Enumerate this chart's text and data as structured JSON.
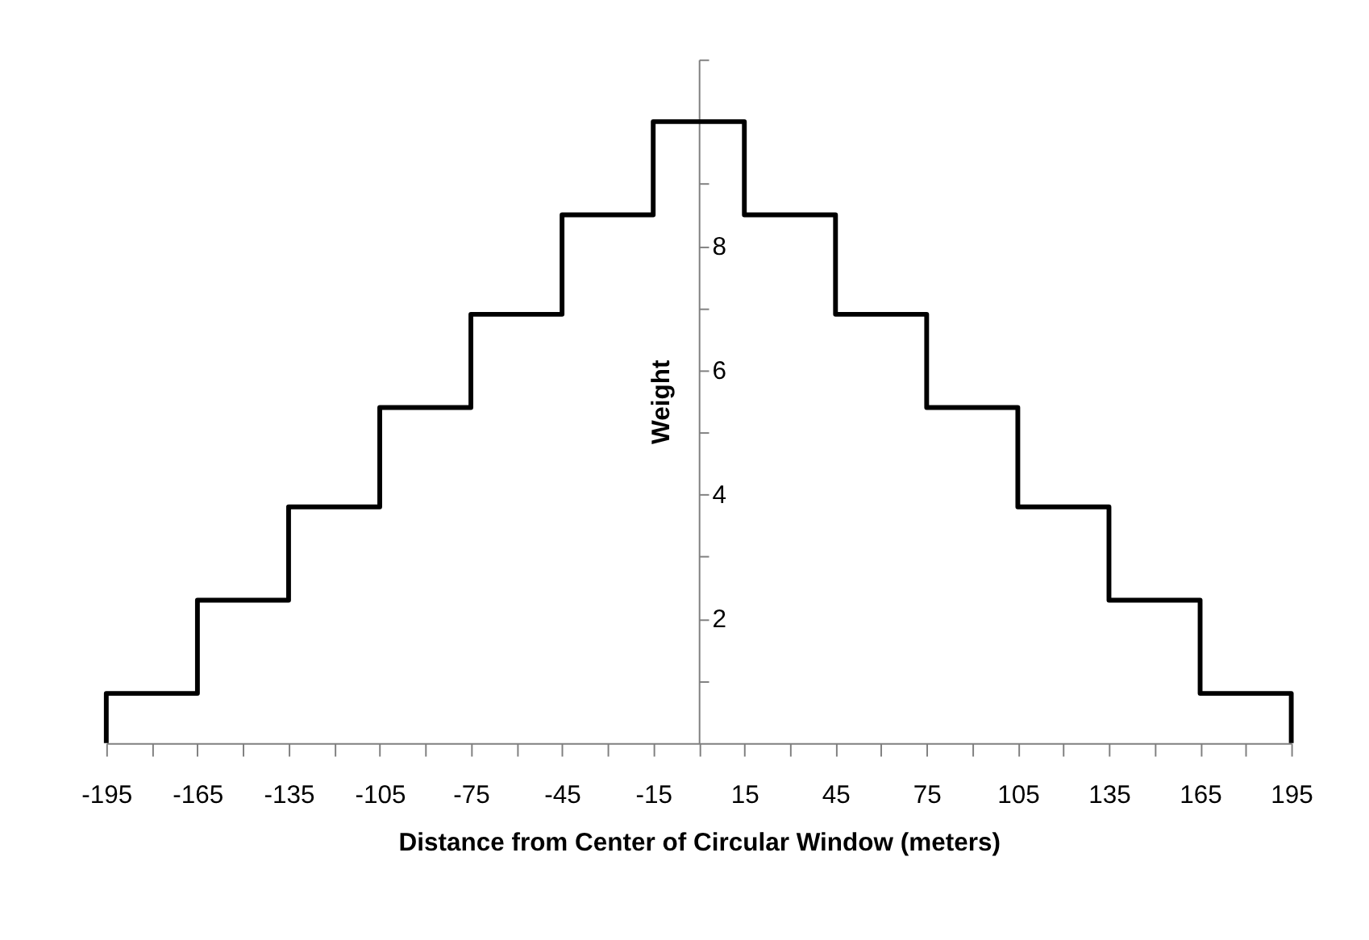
{
  "chart_data": {
    "type": "step",
    "xlabel": "Distance from Center of Circular Window (meters)",
    "ylabel": "Weight",
    "x": [
      -195,
      -195,
      -165,
      -135,
      -105,
      -75,
      -45,
      -15,
      15,
      45,
      75,
      105,
      135,
      165,
      195,
      195
    ],
    "series": [
      {
        "color": "#000000",
        "values": [
          0,
          0.8,
          2.3,
          3.8,
          5.4,
          6.9,
          8.5,
          10,
          8.5,
          6.9,
          5.4,
          3.8,
          2.3,
          0.8,
          0.8,
          0
        ]
      }
    ],
    "xlim": [
      -195,
      195
    ],
    "xticks": [
      -195,
      {
        "value": -180,
        "label": null
      },
      -165,
      {
        "value": -150,
        "label": null
      },
      -135,
      {
        "value": -120,
        "label": null
      },
      -105,
      {
        "value": -90,
        "label": null
      },
      -75,
      {
        "value": -60,
        "label": null
      },
      -45,
      {
        "value": -30,
        "label": null
      },
      -15,
      {
        "value": 0,
        "label": null
      },
      15,
      {
        "value": 30,
        "label": null
      },
      45,
      {
        "value": 60,
        "label": null
      },
      75,
      {
        "value": 90,
        "label": null
      },
      105,
      {
        "value": 120,
        "label": null
      },
      135,
      {
        "value": 150,
        "label": null
      },
      165,
      {
        "value": 180,
        "label": null
      },
      195
    ],
    "ylim": [
      0,
      11
    ],
    "yticks": [
      {
        "value": 1,
        "label": null
      },
      2,
      {
        "value": 3,
        "label": null
      },
      4,
      {
        "value": 5,
        "label": null
      },
      6,
      {
        "value": 7,
        "label": null
      },
      8,
      {
        "value": 9,
        "label": null
      },
      {
        "value": 10,
        "label": null
      },
      {
        "value": 11,
        "label": null
      }
    ],
    "grid": false,
    "marker": "none",
    "line_style": "solid"
  }
}
